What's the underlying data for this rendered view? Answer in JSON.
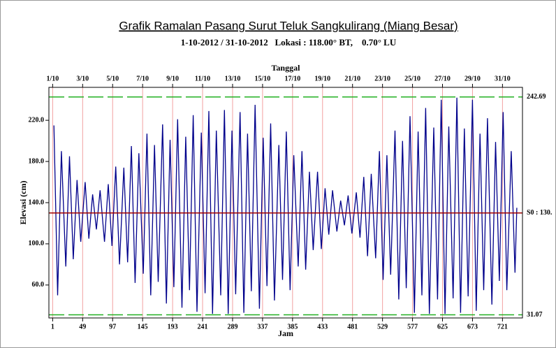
{
  "chart_data": {
    "type": "line",
    "title": "Grafik Ramalan Pasang Surut Teluk Sangkulirang (Miang Besar)",
    "subtitle": "1-10-2012 / 31-10-2012   Lokasi : 118.00° BT,    0.70° LU",
    "x_label": "Jam",
    "x2_label": "Tanggal",
    "y_label": "Elevasi (cm)",
    "xlim": [
      -5,
      753
    ],
    "ylim": [
      28,
      252
    ],
    "xticks": [
      1,
      49,
      97,
      145,
      193,
      241,
      289,
      337,
      385,
      433,
      481,
      529,
      577,
      625,
      673,
      721
    ],
    "x2ticks": [
      {
        "value": 1,
        "label": "1/10"
      },
      {
        "value": 49,
        "label": "3/10"
      },
      {
        "value": 97,
        "label": "5/10"
      },
      {
        "value": 145,
        "label": "7/10"
      },
      {
        "value": 193,
        "label": "9/10"
      },
      {
        "value": 241,
        "label": "11/10"
      },
      {
        "value": 289,
        "label": "13/10"
      },
      {
        "value": 337,
        "label": "15/10"
      },
      {
        "value": 385,
        "label": "17/10"
      },
      {
        "value": 433,
        "label": "19/10"
      },
      {
        "value": 481,
        "label": "21/10"
      },
      {
        "value": 529,
        "label": "23/10"
      },
      {
        "value": 577,
        "label": "25/10"
      },
      {
        "value": 625,
        "label": "27/10"
      },
      {
        "value": 673,
        "label": "29/10"
      },
      {
        "value": 721,
        "label": "31/10"
      }
    ],
    "yticks": [
      {
        "value": 60,
        "label": "60.0"
      },
      {
        "value": 100,
        "label": "100.0"
      },
      {
        "value": 140,
        "label": "140.0"
      },
      {
        "value": 180,
        "label": "180.0"
      },
      {
        "value": 220,
        "label": "220.0"
      }
    ],
    "grid": true,
    "grid_color": "#f2a0a0",
    "ref_lines": [
      {
        "value": 242.69,
        "color": "#22b022",
        "dashed": true
      },
      {
        "value": 130,
        "label": "S0 : 130.",
        "color": "#a00000",
        "dashed": false
      },
      {
        "value": 31.07,
        "color": "#22b022",
        "dashed": true
      }
    ],
    "x": [
      3,
      9,
      15,
      22,
      28,
      34,
      40,
      46,
      53,
      59,
      65,
      71,
      77,
      84,
      90,
      96,
      102,
      108,
      115,
      121,
      127,
      133,
      139,
      146,
      152,
      158,
      164,
      170,
      177,
      183,
      189,
      195,
      201,
      208,
      214,
      220,
      226,
      232,
      239,
      245,
      251,
      257,
      263,
      270,
      276,
      282,
      288,
      294,
      301,
      307,
      313,
      319,
      325,
      332,
      338,
      344,
      350,
      356,
      363,
      369,
      375,
      381,
      387,
      394,
      400,
      406,
      412,
      418,
      425,
      431,
      437,
      443,
      449,
      456,
      462,
      468,
      474,
      480,
      487,
      493,
      499,
      505,
      511,
      518,
      524,
      530,
      536,
      542,
      549,
      555,
      561,
      567,
      573,
      580,
      586,
      592,
      598,
      604,
      611,
      617,
      623,
      629,
      635,
      642,
      648,
      654,
      660,
      666,
      673,
      679,
      685,
      691,
      697,
      704,
      710,
      716,
      722,
      728,
      735,
      741,
      744
    ],
    "series": [
      {
        "name": "Elevasi",
        "color": "#00008b",
        "values": [
          215,
          50,
          190,
          78,
          185,
          85,
          162,
          102,
          160,
          105,
          148,
          114,
          152,
          102,
          158,
          98,
          175,
          80,
          174,
          82,
          195,
          62,
          188,
          71,
          207,
          50,
          196,
          63,
          216,
          42,
          201,
          58,
          221,
          38,
          204,
          55,
          225,
          34,
          208,
          52,
          229,
          32,
          210,
          50,
          230,
          32,
          210,
          51,
          228,
          33,
          207,
          54,
          235,
          37,
          203,
          59,
          217,
          45,
          196,
          65,
          209,
          55,
          186,
          78,
          190,
          75,
          170,
          94,
          170,
          95,
          154,
          109,
          152,
          112,
          142,
          118,
          147,
          110,
          150,
          106,
          165,
          88,
          168,
          86,
          190,
          65,
          186,
          70,
          210,
          46,
          200,
          57,
          224,
          33,
          209,
          50,
          232,
          32,
          213,
          46,
          240,
          32,
          214,
          47,
          242,
          33,
          212,
          49,
          240,
          35,
          207,
          55,
          222,
          41,
          199,
          64,
          228,
          55,
          190,
          72,
          135
        ]
      }
    ]
  }
}
